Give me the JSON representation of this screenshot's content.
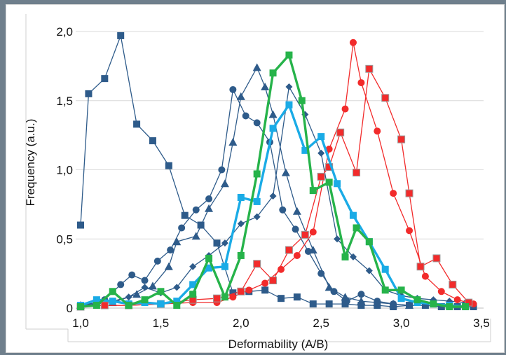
{
  "chart_data": {
    "type": "line",
    "title": "",
    "xlabel": "Deformability (A/B)",
    "ylabel": "Frequency (a.u.)",
    "xlim": [
      1.0,
      3.5
    ],
    "ylim": [
      0,
      2.0
    ],
    "x_ticks": [
      "1,0",
      "1,5",
      "2,0",
      "2,5",
      "3,0",
      "3,5"
    ],
    "y_ticks": [
      "0",
      "0,5",
      "1,0",
      "1,5",
      "2,0"
    ],
    "grid": "horizontal",
    "legend": "none",
    "series": [
      {
        "color": "#2e5b8a",
        "marker": "square",
        "width": 1.3,
        "x": [
          1.0,
          1.05,
          1.15,
          1.25,
          1.35,
          1.45,
          1.55,
          1.65,
          1.75,
          1.85,
          1.95,
          2.05,
          2.15,
          2.25,
          2.35,
          2.45,
          2.55,
          2.65,
          2.75,
          2.85,
          2.95,
          3.05,
          3.15,
          3.25,
          3.35,
          3.45
        ],
        "y": [
          0.6,
          1.55,
          1.66,
          1.97,
          1.33,
          1.21,
          1.03,
          0.67,
          0.6,
          0.47,
          0.11,
          0.12,
          0.13,
          0.07,
          0.08,
          0.03,
          0.03,
          0.03,
          0.02,
          0.02,
          0.01,
          0.02,
          0.02,
          0.01,
          0.01,
          0.01
        ]
      },
      {
        "color": "#2e5b8a",
        "marker": "circle",
        "width": 1.3,
        "x": [
          1.0,
          1.1,
          1.15,
          1.25,
          1.32,
          1.4,
          1.48,
          1.56,
          1.63,
          1.72,
          1.8,
          1.88,
          1.95,
          2.03,
          2.1,
          2.18,
          2.26,
          2.34,
          2.42,
          2.5,
          2.58,
          2.66,
          2.75,
          2.85,
          2.95,
          3.05,
          3.15,
          3.25,
          3.35,
          3.45
        ],
        "y": [
          0.02,
          0.04,
          0.06,
          0.17,
          0.24,
          0.2,
          0.34,
          0.42,
          0.58,
          0.71,
          0.79,
          1.0,
          1.58,
          1.39,
          1.34,
          1.2,
          0.71,
          0.57,
          0.41,
          0.25,
          0.12,
          0.05,
          0.1,
          0.05,
          0.03,
          0.02,
          0.02,
          0.01,
          0.01,
          0.01
        ]
      },
      {
        "color": "#2e5b8a",
        "marker": "triangle",
        "width": 1.3,
        "x": [
          1.0,
          1.2,
          1.35,
          1.45,
          1.55,
          1.6,
          1.72,
          1.8,
          1.9,
          1.95,
          2.0,
          2.1,
          2.15,
          2.2,
          2.28,
          2.35,
          2.45,
          2.55,
          2.65,
          2.75,
          2.85,
          2.95,
          3.05
        ],
        "y": [
          0.02,
          0.04,
          0.1,
          0.16,
          0.3,
          0.48,
          0.52,
          0.72,
          0.9,
          1.2,
          1.53,
          1.74,
          1.6,
          1.4,
          0.98,
          0.7,
          0.42,
          0.15,
          0.08,
          0.05,
          0.04,
          0.03,
          0.02
        ]
      },
      {
        "color": "#2e5b8a",
        "marker": "diamond",
        "width": 1.3,
        "x": [
          1.0,
          1.1,
          1.2,
          1.3,
          1.4,
          1.5,
          1.6,
          1.7,
          1.8,
          1.9,
          2.0,
          2.1,
          2.2,
          2.3,
          2.4,
          2.5,
          2.6,
          2.7,
          2.8,
          2.9,
          3.0,
          3.1,
          3.2,
          3.3,
          3.4
        ],
        "y": [
          0.02,
          0.04,
          0.05,
          0.08,
          0.15,
          0.11,
          0.15,
          0.3,
          0.38,
          0.47,
          0.61,
          0.66,
          0.81,
          1.6,
          1.4,
          1.12,
          0.5,
          0.37,
          0.27,
          0.13,
          0.09,
          0.07,
          0.06,
          0.05,
          0.04
        ]
      },
      {
        "color": "#f22b2b",
        "marker": "circle",
        "width": 1.3,
        "x": [
          1.0,
          1.15,
          1.3,
          1.5,
          1.7,
          1.85,
          1.95,
          2.05,
          2.15,
          2.25,
          2.35,
          2.45,
          2.55,
          2.65,
          2.7,
          2.75,
          2.85,
          2.95,
          3.05,
          3.15,
          3.25,
          3.35,
          3.45
        ],
        "y": [
          0.01,
          0.02,
          0.02,
          0.03,
          0.04,
          0.04,
          0.08,
          0.13,
          0.18,
          0.28,
          0.38,
          0.55,
          1.15,
          1.44,
          1.92,
          1.63,
          1.28,
          0.83,
          0.56,
          0.23,
          0.12,
          0.06,
          0.03
        ]
      },
      {
        "color": "#f22b2b",
        "marker": "square",
        "width": 1.3,
        "x": [
          1.0,
          1.15,
          1.3,
          1.5,
          1.7,
          1.85,
          2.0,
          2.1,
          2.2,
          2.3,
          2.4,
          2.5,
          2.55,
          2.62,
          2.72,
          2.8,
          2.9,
          3.0,
          3.05,
          3.12,
          3.22,
          3.32,
          3.42
        ],
        "y": [
          0.01,
          0.02,
          0.02,
          0.03,
          0.06,
          0.07,
          0.12,
          0.32,
          0.2,
          0.42,
          0.53,
          0.95,
          1.02,
          1.27,
          0.98,
          1.73,
          1.52,
          1.22,
          0.83,
          0.3,
          0.36,
          0.17,
          0.04
        ]
      },
      {
        "color": "#1aabe6",
        "marker": "square",
        "width": 3.4,
        "x": [
          1.0,
          1.1,
          1.2,
          1.3,
          1.4,
          1.5,
          1.6,
          1.7,
          1.8,
          1.9,
          2.0,
          2.1,
          2.2,
          2.3,
          2.4,
          2.5,
          2.6,
          2.7,
          2.8,
          2.9,
          3.0,
          3.1,
          3.2,
          3.3,
          3.4
        ],
        "y": [
          0.02,
          0.06,
          0.05,
          0.03,
          0.04,
          0.03,
          0.05,
          0.17,
          0.29,
          0.3,
          0.8,
          0.77,
          1.3,
          1.47,
          1.14,
          1.24,
          0.9,
          0.67,
          0.48,
          0.28,
          0.07,
          0.04,
          0.03,
          0.02,
          0.01
        ]
      },
      {
        "color": "#26b34a",
        "marker": "square",
        "width": 3.4,
        "x": [
          1.0,
          1.1,
          1.2,
          1.3,
          1.4,
          1.5,
          1.6,
          1.7,
          1.8,
          1.9,
          2.0,
          2.1,
          2.2,
          2.3,
          2.38,
          2.45,
          2.55,
          2.65,
          2.72,
          2.8,
          2.9,
          3.0,
          3.1,
          3.2,
          3.3,
          3.4
        ],
        "y": [
          0.01,
          0.02,
          0.12,
          0.02,
          0.06,
          0.12,
          0.02,
          0.1,
          0.36,
          0.08,
          0.38,
          0.97,
          1.7,
          1.83,
          1.5,
          0.85,
          0.91,
          0.37,
          0.58,
          0.48,
          0.13,
          0.13,
          0.06,
          0.03,
          0.01,
          0.01
        ]
      }
    ]
  }
}
